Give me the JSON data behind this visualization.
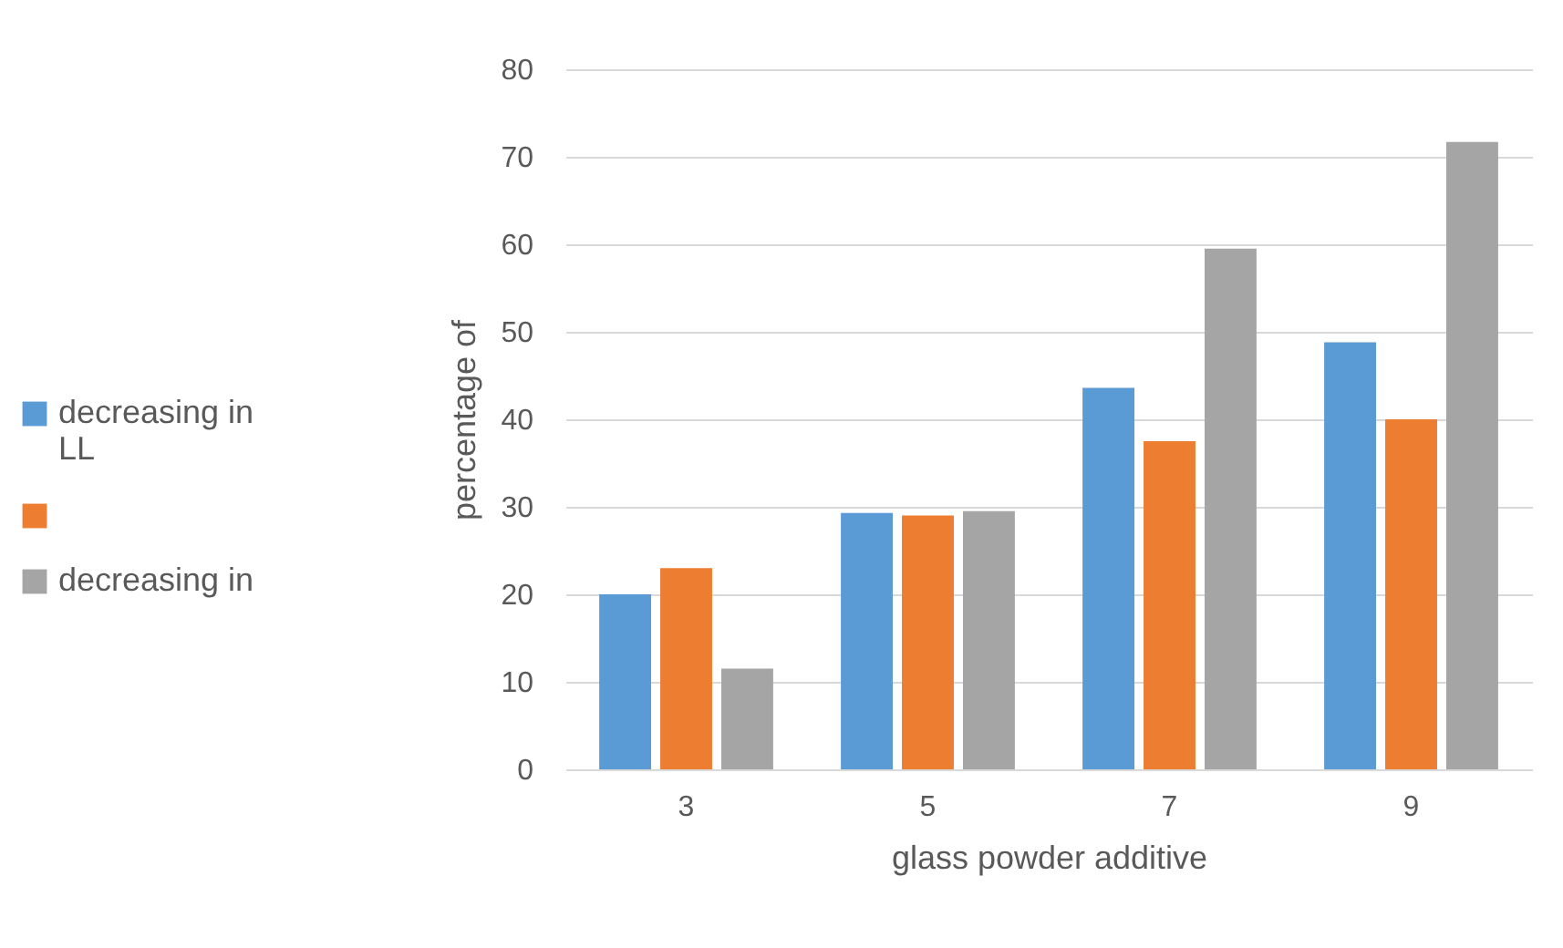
{
  "chart_data": {
    "type": "bar",
    "xlabel": "glass powder additive",
    "ylabel": "percentage of",
    "categories": [
      "3",
      "5",
      "7",
      "9"
    ],
    "series": [
      {
        "name": "decreasing in LL",
        "color": "#5b9bd5",
        "values": [
          20,
          29.3,
          43.6,
          48.8
        ]
      },
      {
        "color": "#ed7d31",
        "values": [
          23,
          29,
          37.5,
          40
        ]
      },
      {
        "name": "decreasing in",
        "color": "#a5a5a5",
        "values": [
          11.5,
          29.5,
          59.5,
          71.7
        ]
      }
    ],
    "ylim": [
      0,
      80
    ],
    "yticks": [
      0,
      10,
      20,
      30,
      40,
      50,
      60,
      70,
      80
    ],
    "grid": "y",
    "legend": "left"
  }
}
